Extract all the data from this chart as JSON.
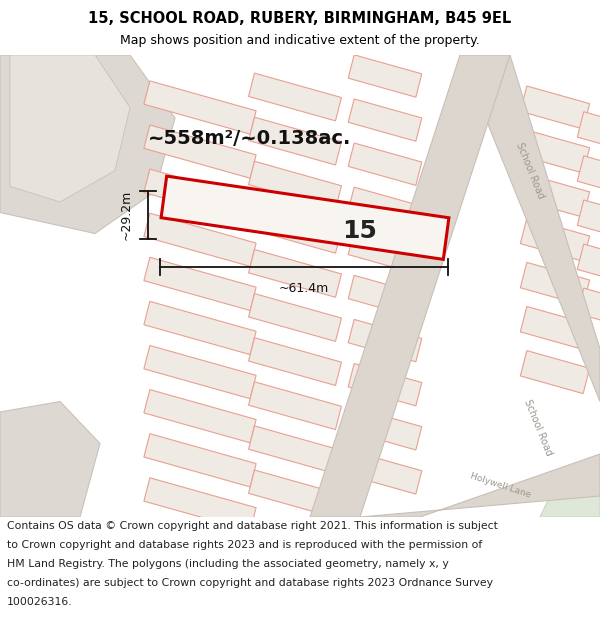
{
  "title_line1": "15, SCHOOL ROAD, RUBERY, BIRMINGHAM, B45 9EL",
  "title_line2": "Map shows position and indicative extent of the property.",
  "footer_lines": [
    "Contains OS data © Crown copyright and database right 2021. This information is subject",
    "to Crown copyright and database rights 2023 and is reproduced with the permission of",
    "HM Land Registry. The polygons (including the associated geometry, namely x, y",
    "co-ordinates) are subject to Crown copyright and database rights 2023 Ordnance Survey",
    "100026316."
  ],
  "map_bg": "#f5f0eb",
  "parcel_fill": "#f0eae4",
  "parcel_edge": "#e8a090",
  "road_fill": "#ddd6ce",
  "road_edge": "#c8c0b8",
  "grey_area_fill": "#ddd8d2",
  "grey_area_edge": "#c8c2bc",
  "red_outline": "#cc0000",
  "highlight_fill": "#f8f4f0",
  "dim_color": "#111111",
  "area_text": "~558m²/~0.138ac.",
  "label_15": "15",
  "dim_width": "~61.4m",
  "dim_height": "~29.2m",
  "title_fontsize": 10.5,
  "subtitle_fontsize": 9.0,
  "footer_fontsize": 7.8,
  "area_fontsize": 14,
  "label_fontsize": 18
}
